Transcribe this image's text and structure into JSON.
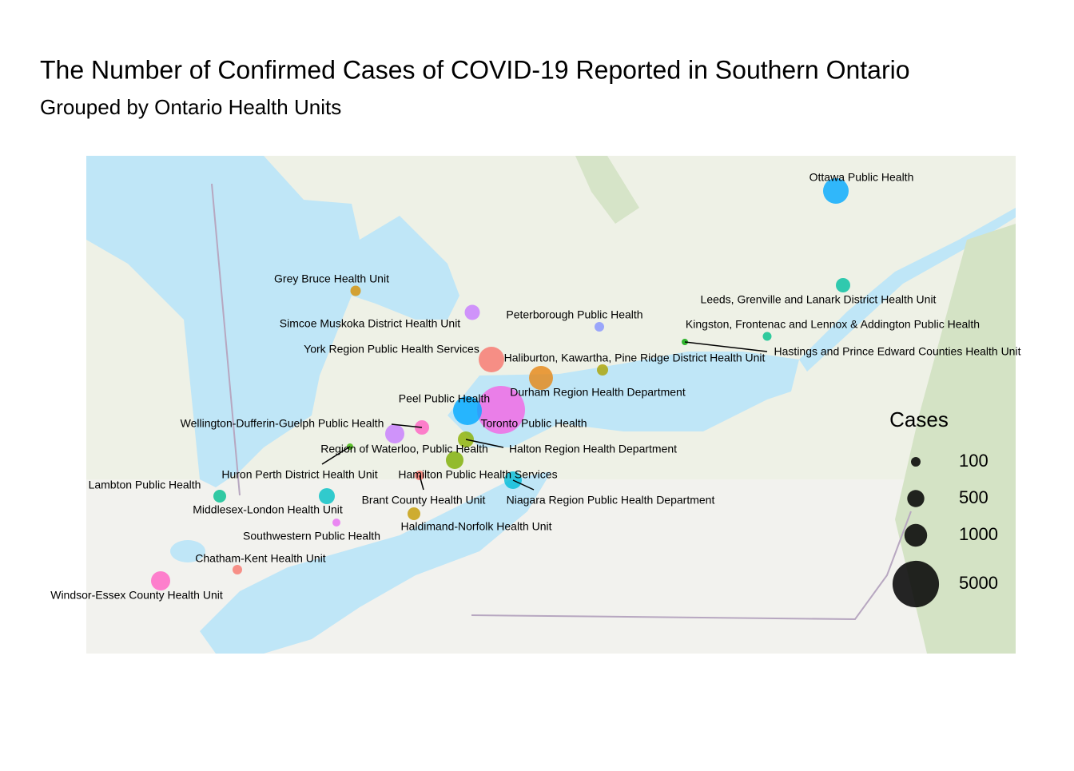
{
  "chart_data": {
    "type": "bubble-map",
    "title": "The Number of Confirmed Cases of COVID-19 Reported in Southern Ontario",
    "subtitle": "Grouped by Ontario Health Units",
    "points": [
      {
        "name": "Toronto Public Health",
        "value": 5350,
        "color": "#f564e3"
      },
      {
        "name": "Peel Public Health",
        "value": 1730,
        "color": "#00a9ff"
      },
      {
        "name": "York Region Public Health Services",
        "value": 1320,
        "color": "#f8766d"
      },
      {
        "name": "Ottawa Public Health",
        "value": 1320,
        "color": "#00a9ff"
      },
      {
        "name": "Durham Region Health Department",
        "value": 1130,
        "color": "#e68613"
      },
      {
        "name": "Windsor-Essex County Health Unit",
        "value": 665,
        "color": "#ff61c3"
      },
      {
        "name": "Hamilton Public Health Services",
        "value": 536,
        "color": "#7cae00"
      },
      {
        "name": "Halton Region Health Department",
        "value": 421,
        "color": "#8ab000"
      },
      {
        "name": "Niagara Region Public Health Department",
        "value": 536,
        "color": "#00bcd8"
      },
      {
        "name": "Region of Waterloo, Public Health",
        "value": 665,
        "color": "#c77cff"
      },
      {
        "name": "Simcoe Muskoka District Health Unit",
        "value": 369,
        "color": "#c77cff"
      },
      {
        "name": "Wellington-Dufferin-Guelph Public Health",
        "value": 320,
        "color": "#ff61c3"
      },
      {
        "name": "Middlesex-London Health Unit",
        "value": 421,
        "color": "#00bfc4"
      },
      {
        "name": "Leeds, Grenville and Lanark District Health Unit",
        "value": 320,
        "color": "#00bfa0"
      },
      {
        "name": "Haliburton, Kawartha, Pine Ridge District Health Unit",
        "value": 160,
        "color": "#aba300"
      },
      {
        "name": "Lambton Public Health",
        "value": 233,
        "color": "#00be90"
      },
      {
        "name": "Grey Bruce Health Unit",
        "value": 128,
        "color": "#d89000"
      },
      {
        "name": "Haldimand-Norfolk Health Unit",
        "value": 233,
        "color": "#c49a00"
      },
      {
        "name": "Peterborough Public Health",
        "value": 100,
        "color": "#8494ff"
      },
      {
        "name": "Kingston, Frontenac and Lennox & Addington Public Health",
        "value": 75,
        "color": "#00c08b"
      },
      {
        "name": "Southwestern Public Health",
        "value": 54,
        "color": "#e76bf3"
      },
      {
        "name": "Chatham-Kent Health Unit",
        "value": 100,
        "color": "#f8766d"
      },
      {
        "name": "Brant County Health Unit",
        "value": 100,
        "color": "#f8766d"
      },
      {
        "name": "Huron Perth District Health Unit",
        "value": 22,
        "color": "#39b600"
      },
      {
        "name": "Hastings and Prince Edward Counties Health Unit",
        "value": 22,
        "color": "#00a500"
      }
    ],
    "size_legend": {
      "title": "Cases",
      "values": [
        100,
        500,
        1000,
        5000
      ]
    }
  }
}
